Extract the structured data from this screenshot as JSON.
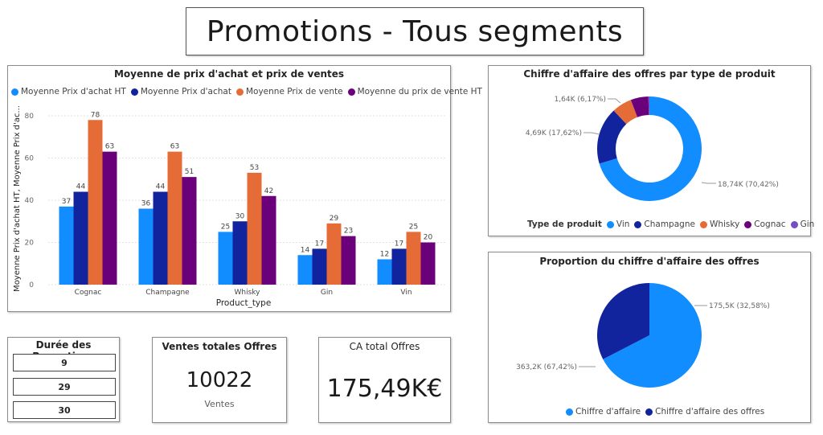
{
  "page_title": "Promotions - Tous segments",
  "bar_chart": {
    "title": "Moyenne de prix d'achat et prix de ventes",
    "legend": [
      {
        "label": "Moyenne Prix d'achat HT",
        "color": "#118DFF"
      },
      {
        "label": "Moyenne Prix d'achat",
        "color": "#12239E"
      },
      {
        "label": "Moyenne Prix de vente",
        "color": "#E66C37"
      },
      {
        "label": "Moyenne du prix de vente HT",
        "color": "#6B007B"
      }
    ],
    "ylabel": "Moyenne Prix d'achat HT, Moyenne Prix d'ac...",
    "xlabel": "Product_type"
  },
  "donut": {
    "title": "Chiffre d'affaire des offres par type de produit",
    "legend_title": "Type de produit",
    "legend": [
      {
        "label": "Vin",
        "color": "#118DFF"
      },
      {
        "label": "Champagne",
        "color": "#12239E"
      },
      {
        "label": "Whisky",
        "color": "#E66C37"
      },
      {
        "label": "Cognac",
        "color": "#6B007B"
      },
      {
        "label": "Gin",
        "color": "#744EC2"
      }
    ],
    "labels": {
      "vin": "18,74K (70,42%)",
      "champagne": "4,69K (17,62%)",
      "whisky": "1,64K (6,17%)"
    }
  },
  "pie": {
    "title": "Proportion du chiffre d'affaire des offres",
    "legend": [
      {
        "label": "Chiffre d'affaire",
        "color": "#118DFF"
      },
      {
        "label": "Chiffre d'affaire des offres",
        "color": "#12239E"
      }
    ],
    "labels": {
      "ca": "363,2K (67,42%)",
      "offres": "175,5K (32,58%)"
    }
  },
  "slicer": {
    "title": "Durée des Promotions",
    "items": [
      "9",
      "29",
      "30"
    ]
  },
  "card_ventes": {
    "title": "Ventes totales Offres",
    "value": "10022",
    "caption": "Ventes"
  },
  "card_ca": {
    "title": "CA total Offres",
    "value": "175,49K€"
  },
  "chart_data": [
    {
      "type": "bar",
      "title": "Moyenne de prix d'achat et prix de ventes",
      "xlabel": "Product_type",
      "ylabel": "Moyenne Prix d'achat HT, Moyenne Prix d'ac...",
      "ylim": [
        0,
        80
      ],
      "yticks": [
        0,
        20,
        40,
        60,
        80
      ],
      "categories": [
        "Cognac",
        "Champagne",
        "Whisky",
        "Gin",
        "Vin"
      ],
      "series": [
        {
          "name": "Moyenne Prix d'achat HT",
          "color": "#118DFF",
          "values": [
            37,
            36,
            25,
            14,
            12
          ]
        },
        {
          "name": "Moyenne Prix d'achat",
          "color": "#12239E",
          "values": [
            44,
            44,
            30,
            17,
            17
          ]
        },
        {
          "name": "Moyenne Prix de vente",
          "color": "#E66C37",
          "values": [
            78,
            63,
            53,
            29,
            25
          ]
        },
        {
          "name": "Moyenne du prix de vente HT",
          "color": "#6B007B",
          "values": [
            63,
            51,
            42,
            23,
            20
          ]
        }
      ],
      "grid": true,
      "legend": "top-left"
    },
    {
      "type": "pie",
      "subtype": "donut",
      "title": "Chiffre d'affaire des offres par type de produit",
      "categories": [
        "Vin",
        "Champagne",
        "Whisky",
        "Cognac",
        "Gin"
      ],
      "values": [
        70.42,
        17.62,
        6.17,
        5.49,
        0.3
      ],
      "colors": [
        "#118DFF",
        "#12239E",
        "#E66C37",
        "#6B007B",
        "#744EC2"
      ],
      "legend": "bottom"
    },
    {
      "type": "pie",
      "title": "Proportion du chiffre d'affaire des offres",
      "categories": [
        "Chiffre d'affaire",
        "Chiffre d'affaire des offres"
      ],
      "values": [
        67.42,
        32.58
      ],
      "colors": [
        "#118DFF",
        "#12239E"
      ],
      "legend": "bottom"
    }
  ]
}
